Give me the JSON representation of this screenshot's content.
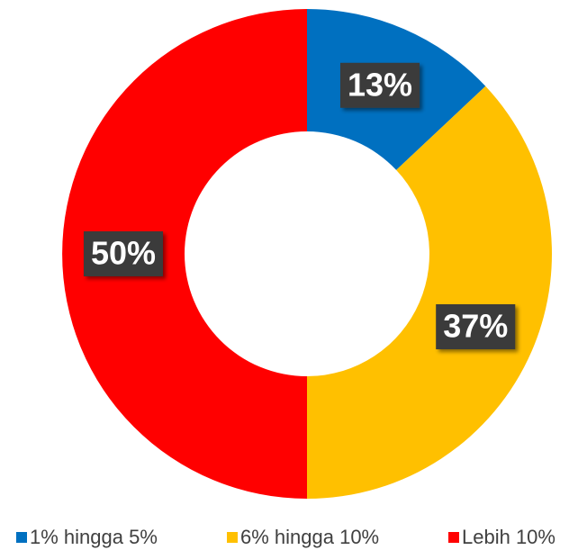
{
  "chart_data": {
    "type": "donut",
    "categories": [
      "1% hingga 5%",
      "6% hingga 10%",
      "Lebih 10%"
    ],
    "values": [
      13,
      37,
      50
    ],
    "value_labels": [
      "13%",
      "37%",
      "50%"
    ],
    "colors": [
      "#0070c0",
      "#ffc000",
      "#ff0000"
    ],
    "legend": "bottom"
  }
}
